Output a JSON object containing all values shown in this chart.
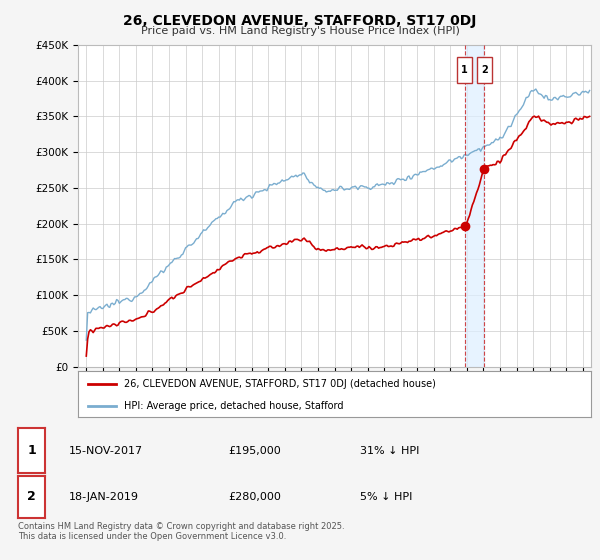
{
  "title": "26, CLEVEDON AVENUE, STAFFORD, ST17 0DJ",
  "subtitle": "Price paid vs. HM Land Registry's House Price Index (HPI)",
  "ylabel_ticks": [
    "£0",
    "£50K",
    "£100K",
    "£150K",
    "£200K",
    "£250K",
    "£300K",
    "£350K",
    "£400K",
    "£450K"
  ],
  "ylim": [
    0,
    450000
  ],
  "xlim_start": 1994.5,
  "xlim_end": 2025.5,
  "legend_line1": "26, CLEVEDON AVENUE, STAFFORD, ST17 0DJ (detached house)",
  "legend_line2": "HPI: Average price, detached house, Stafford",
  "transaction1_date": "15-NOV-2017",
  "transaction1_price": "£195,000",
  "transaction1_hpi": "31% ↓ HPI",
  "transaction2_date": "18-JAN-2019",
  "transaction2_price": "£280,000",
  "transaction2_hpi": "5% ↓ HPI",
  "vline1_x": 2017.87,
  "vline2_x": 2019.05,
  "footer": "Contains HM Land Registry data © Crown copyright and database right 2025.\nThis data is licensed under the Open Government Licence v3.0.",
  "red_color": "#cc0000",
  "blue_color": "#7aadcf",
  "background_color": "#f5f5f5",
  "plot_background": "#ffffff",
  "shade_color": "#ddeeff"
}
